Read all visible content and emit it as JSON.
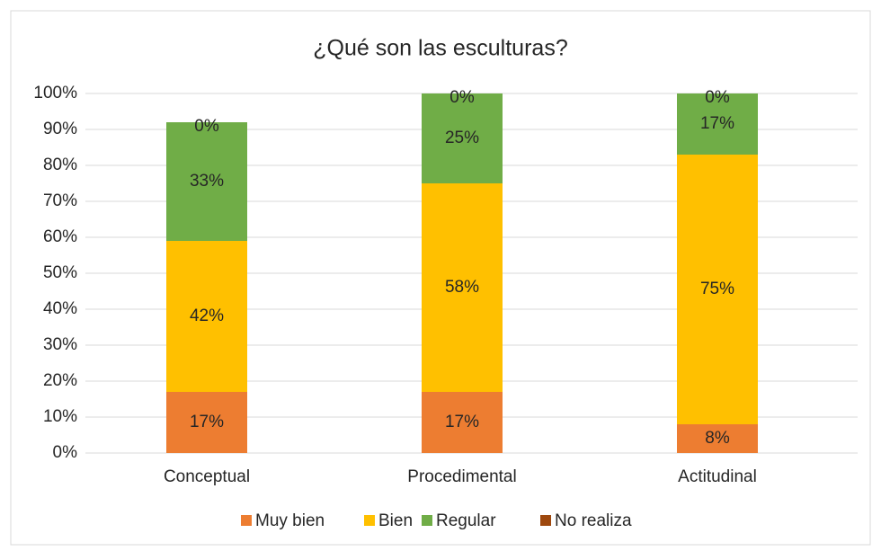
{
  "chart_data": {
    "type": "stacked_bar",
    "title": "¿Qué son las esculturas?",
    "categories": [
      "Conceptual",
      "Procedimental",
      "Actitudinal"
    ],
    "series": [
      {
        "name": "Muy bien",
        "color": "#ed7d31",
        "values": [
          17,
          17,
          8
        ],
        "value_labels": [
          "17%",
          "17%",
          "8%"
        ]
      },
      {
        "name": "Bien",
        "color": "#ffc000",
        "values": [
          42,
          58,
          75
        ],
        "value_labels": [
          "42%",
          "58%",
          "75%"
        ]
      },
      {
        "name": "Regular",
        "color": "#70ad47",
        "values": [
          33,
          25,
          17
        ],
        "value_labels": [
          "33%",
          "25%",
          "17%"
        ]
      },
      {
        "name": "No realiza",
        "color": "#9e480e",
        "values": [
          0,
          0,
          0
        ],
        "value_labels": [
          "0%",
          "0%",
          "0%"
        ]
      }
    ],
    "ylim": [
      0,
      100
    ],
    "yticks": [
      {
        "value": 0,
        "label": "0%"
      },
      {
        "value": 10,
        "label": "10%"
      },
      {
        "value": 20,
        "label": "20%"
      },
      {
        "value": 30,
        "label": "30%"
      },
      {
        "value": 40,
        "label": "40%"
      },
      {
        "value": 50,
        "label": "50%"
      },
      {
        "value": 60,
        "label": "60%"
      },
      {
        "value": 70,
        "label": "70%"
      },
      {
        "value": 80,
        "label": "80%"
      },
      {
        "value": 90,
        "label": "90%"
      },
      {
        "value": 100,
        "label": "100%"
      }
    ],
    "grid": true,
    "legend": "bottom"
  }
}
